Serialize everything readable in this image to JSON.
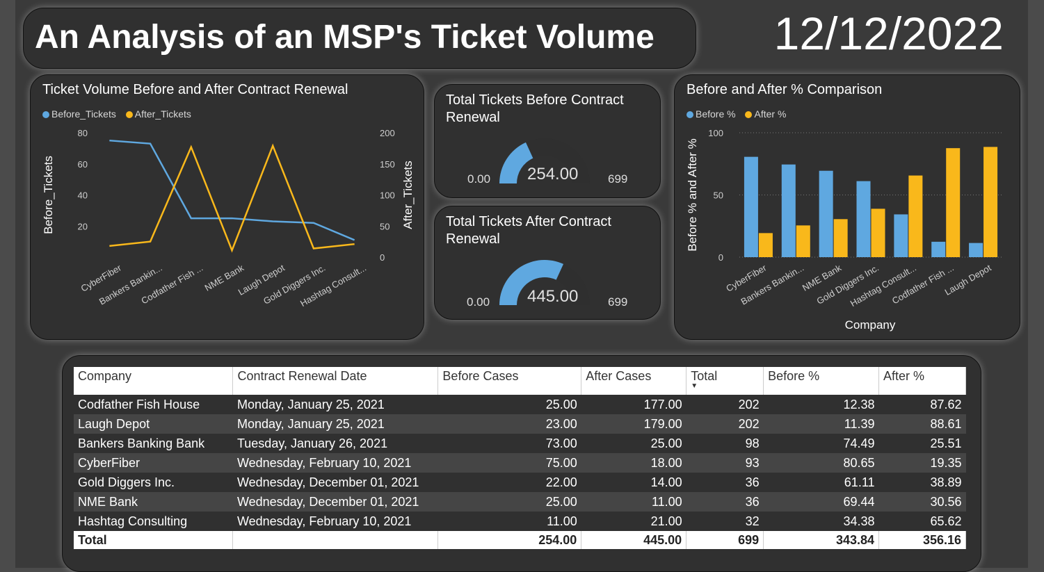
{
  "header": {
    "title": "An Analysis of an MSP's Ticket Volume",
    "date": "12/12/2022"
  },
  "colors": {
    "blue": "#5fa8e0",
    "orange": "#f9b81b"
  },
  "line_chart": {
    "title": "Ticket Volume Before and After Contract Renewal",
    "legend": [
      "Before_Tickets",
      "After_Tickets"
    ]
  },
  "gauge_before": {
    "title": "Total Tickets Before Contract Renewal",
    "min": "0.00",
    "value_label": "254.00",
    "max": "699"
  },
  "gauge_after": {
    "title": "Total Tickets After Contract Renewal",
    "min": "0.00",
    "value_label": "445.00",
    "max": "699"
  },
  "bar_chart": {
    "title": "Before and After % Comparison",
    "legend": [
      "Before %",
      "After %"
    ]
  },
  "chart_data": [
    {
      "type": "line",
      "title": "Ticket Volume Before and After Contract Renewal",
      "categories": [
        "CyberFiber",
        "Bankers Bankin...",
        "Codfather Fish ...",
        "NME Bank",
        "Laugh Depot",
        "Gold Diggers Inc.",
        "Hashtag Consult..."
      ],
      "series": [
        {
          "name": "Before_Tickets",
          "axis": "left",
          "values": [
            75,
            73,
            25,
            25,
            23,
            22,
            11
          ]
        },
        {
          "name": "After_Tickets",
          "axis": "right",
          "values": [
            18,
            25,
            177,
            11,
            179,
            14,
            21
          ]
        }
      ],
      "ylabel": "Before_Tickets",
      "y2label": "After_Tickets",
      "ylim": [
        0,
        80
      ],
      "y2lim": [
        0,
        200
      ],
      "yticks": [
        "20",
        "40",
        "60",
        "80"
      ],
      "y2ticks": [
        "0",
        "50",
        "100",
        "150",
        "200"
      ],
      "legend_position": "top-left"
    },
    {
      "type": "bar",
      "title": "Before and After % Comparison",
      "categories": [
        "CyberFiber",
        "Bankers Bankin...",
        "NME Bank",
        "Gold Diggers Inc.",
        "Hashtag Consult...",
        "Codfather Fish ...",
        "Laugh Depot"
      ],
      "series": [
        {
          "name": "Before %",
          "values": [
            80.65,
            74.49,
            69.44,
            61.11,
            34.38,
            12.38,
            11.39
          ]
        },
        {
          "name": "After %",
          "values": [
            19.35,
            25.51,
            30.56,
            38.89,
            65.62,
            87.62,
            88.61
          ]
        }
      ],
      "xlabel": "Company",
      "ylabel": "Before % and After %",
      "ylim": [
        0,
        100
      ],
      "yticks": [
        "0",
        "50",
        "100"
      ],
      "legend_position": "top-left"
    }
  ],
  "table": {
    "headers": [
      "Company",
      "Contract Renewal Date",
      "Before Cases",
      "After Cases",
      "Total",
      "Before %",
      "After %"
    ],
    "rows": [
      [
        "Codfather Fish House",
        "Monday, January 25, 2021",
        "25.00",
        "177.00",
        "202",
        "12.38",
        "87.62"
      ],
      [
        "Laugh Depot",
        "Monday, January 25, 2021",
        "23.00",
        "179.00",
        "202",
        "11.39",
        "88.61"
      ],
      [
        "Bankers Banking Bank",
        "Tuesday, January 26, 2021",
        "73.00",
        "25.00",
        "98",
        "74.49",
        "25.51"
      ],
      [
        "CyberFiber",
        "Wednesday, February 10, 2021",
        "75.00",
        "18.00",
        "93",
        "80.65",
        "19.35"
      ],
      [
        "Gold Diggers Inc.",
        "Wednesday, December 01, 2021",
        "22.00",
        "14.00",
        "36",
        "61.11",
        "38.89"
      ],
      [
        "NME Bank",
        "Wednesday, December 01, 2021",
        "25.00",
        "11.00",
        "36",
        "69.44",
        "30.56"
      ],
      [
        "Hashtag Consulting",
        "Wednesday, February 10, 2021",
        "11.00",
        "21.00",
        "32",
        "34.38",
        "65.62"
      ]
    ],
    "total": [
      "Total",
      "",
      "254.00",
      "445.00",
      "699",
      "343.84",
      "356.16"
    ]
  }
}
